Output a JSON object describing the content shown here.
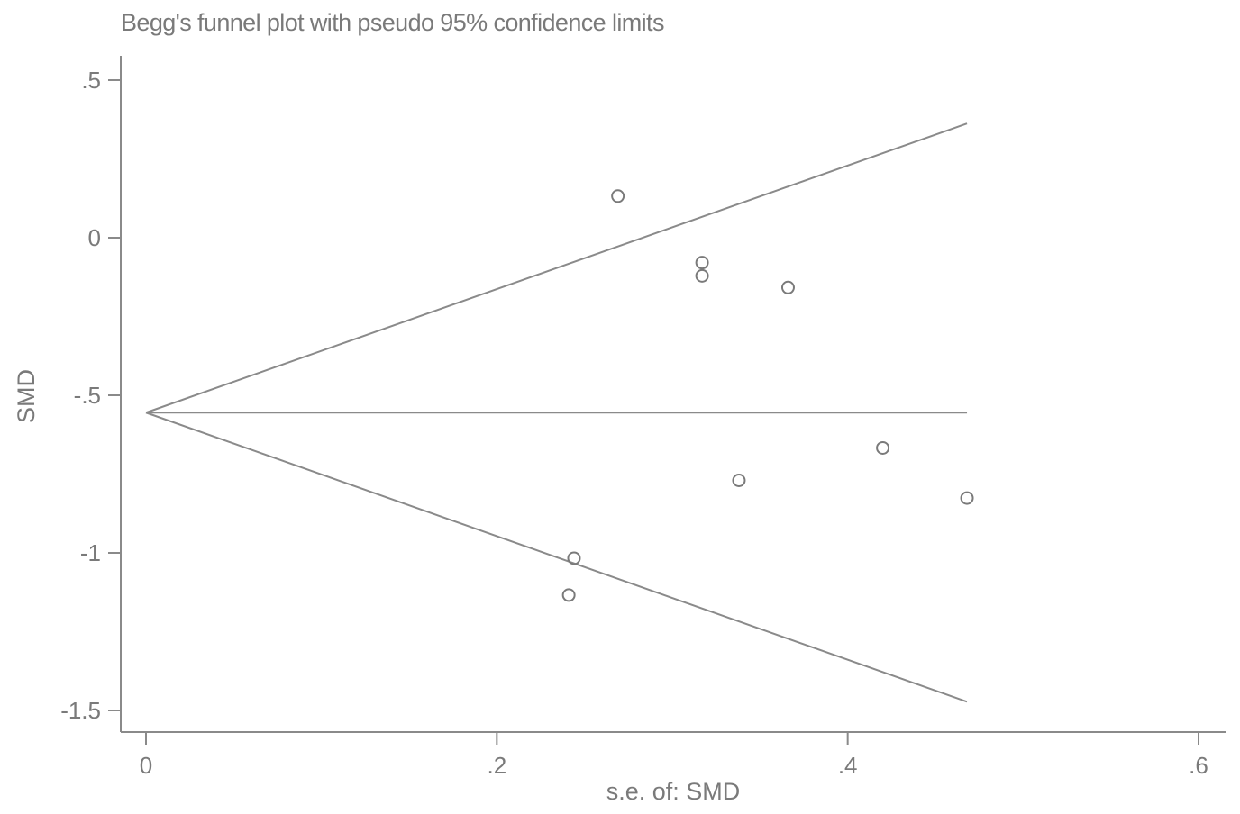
{
  "chart_data": {
    "type": "scatter",
    "title": "Begg's funnel plot with pseudo 95% confidence limits",
    "xlabel": "s.e. of: SMD",
    "ylabel": "SMD",
    "xlim": [
      0,
      0.6
    ],
    "ylim": [
      -1.5,
      0.5
    ],
    "x_ticks": [
      {
        "value": 0,
        "label": "0"
      },
      {
        "value": 0.2,
        "label": ".2"
      },
      {
        "value": 0.4,
        "label": ".4"
      },
      {
        "value": 0.6,
        "label": ".6"
      }
    ],
    "y_ticks": [
      {
        "value": 0.5,
        "label": ".5"
      },
      {
        "value": 0,
        "label": "0"
      },
      {
        "value": -0.5,
        "label": "-.5"
      },
      {
        "value": -1,
        "label": "-1"
      },
      {
        "value": -1.5,
        "label": "-1.5"
      }
    ],
    "grid": false,
    "legend": "none",
    "pooled_estimate": -0.555,
    "funnel_x_max": 0.468,
    "points": [
      {
        "x": 0.269,
        "y": 0.132
      },
      {
        "x": 0.317,
        "y": -0.079
      },
      {
        "x": 0.317,
        "y": -0.121
      },
      {
        "x": 0.366,
        "y": -0.158
      },
      {
        "x": 0.42,
        "y": -0.667
      },
      {
        "x": 0.338,
        "y": -0.77
      },
      {
        "x": 0.468,
        "y": -0.826
      },
      {
        "x": 0.244,
        "y": -1.017
      },
      {
        "x": 0.241,
        "y": -1.134
      }
    ],
    "colors": {
      "axis": "#8a8a8a",
      "line": "#8a8a8a",
      "marker": "#7a7a7a",
      "text": "#7a7a7a"
    }
  }
}
